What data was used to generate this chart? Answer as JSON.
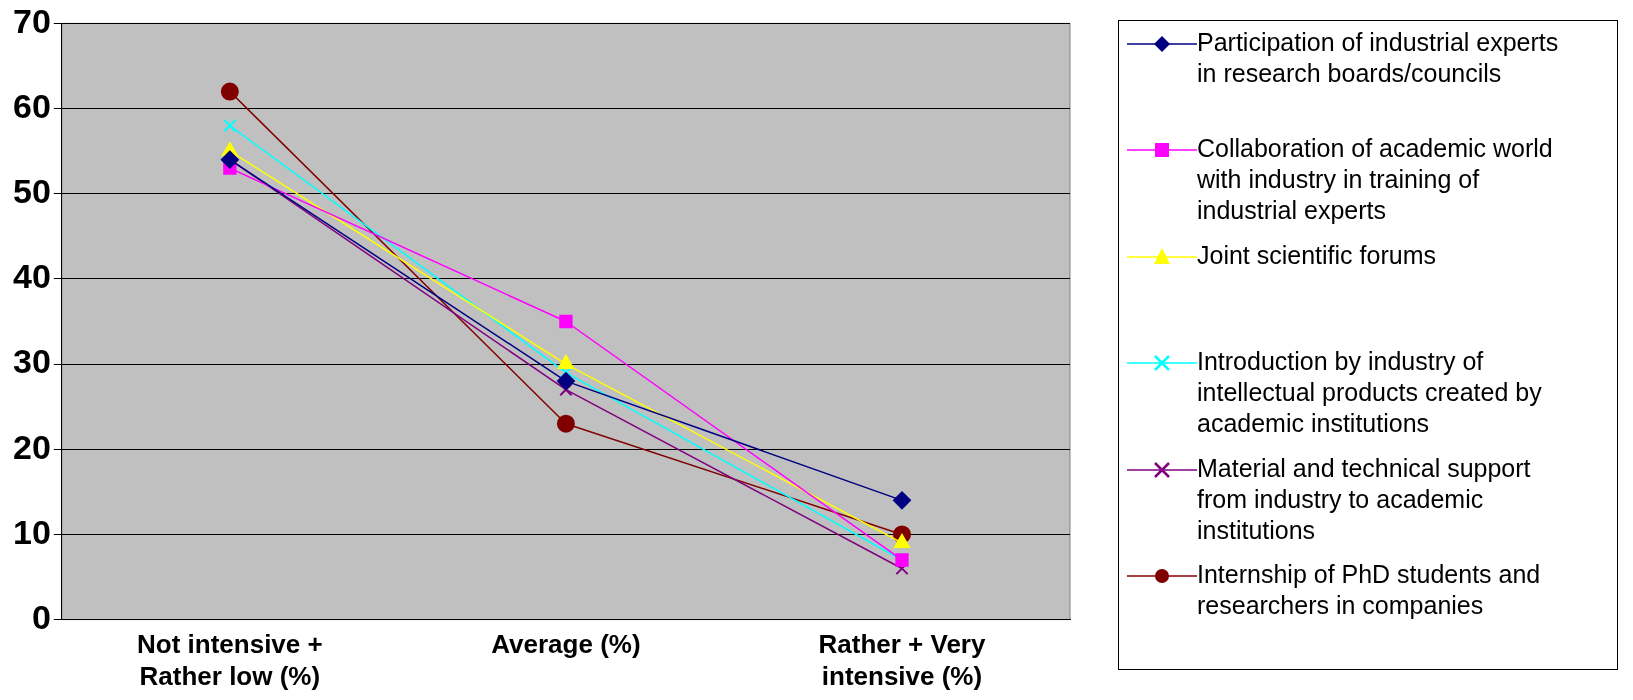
{
  "chart_data": {
    "type": "line",
    "categories": [
      "Not intensive + Rather low (%)",
      "Average (%)",
      "Rather + Very intensive (%)"
    ],
    "series": [
      {
        "name": "Participation of industrial experts in research boards/councils",
        "color": "#000080",
        "marker": "diamond",
        "values": [
          54,
          28,
          14
        ]
      },
      {
        "name": "Collaboration of academic world with industry in training of industrial experts",
        "color": "#ff00ff",
        "marker": "square",
        "values": [
          53,
          35,
          7
        ]
      },
      {
        "name": "Joint scientific forums",
        "color": "#ffff00",
        "marker": "triangle",
        "values": [
          55,
          30,
          9
        ]
      },
      {
        "name": "Introduction by industry of intellectual products created by academic institutions",
        "color": "#00ffff",
        "marker": "cross",
        "values": [
          58,
          29,
          7
        ]
      },
      {
        "name": "Material and technical support from industry to academic institutions",
        "color": "#800080",
        "marker": "cross",
        "values": [
          54,
          27,
          6
        ]
      },
      {
        "name": "Internship of PhD students and researchers in companies",
        "color": "#800000",
        "marker": "circle",
        "values": [
          62,
          23,
          10
        ]
      }
    ],
    "ylim": [
      0,
      70
    ],
    "yticks": [
      0,
      10,
      20,
      30,
      40,
      50,
      60,
      70
    ],
    "grid": "y",
    "legend": "right",
    "line_style": "solid"
  }
}
